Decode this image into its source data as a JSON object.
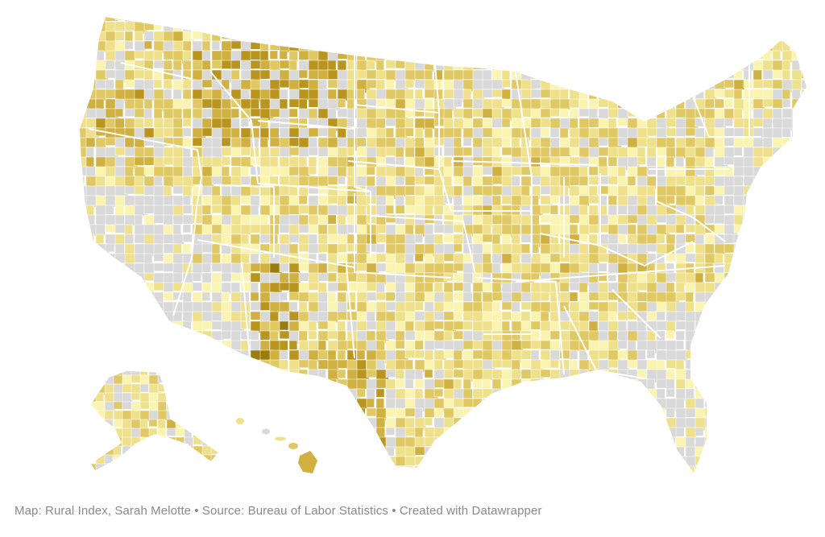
{
  "map": {
    "type": "choropleth",
    "subject": "Rural Index by county",
    "regions_shown": [
      "Contiguous United States",
      "Alaska",
      "Hawaii"
    ],
    "county_borders": "thin white",
    "state_borders": "white",
    "no_data_color": "#d9d9d9",
    "color_scale": [
      "#fbf3b0",
      "#efe08c",
      "#e0c964",
      "#cfb040",
      "#b9951f",
      "#9c7b0d"
    ]
  },
  "footer": {
    "credit": "Map: Rural Index, Sarah Melotte • Source: Bureau of Labor Statistics • Created with Datawrapper"
  }
}
